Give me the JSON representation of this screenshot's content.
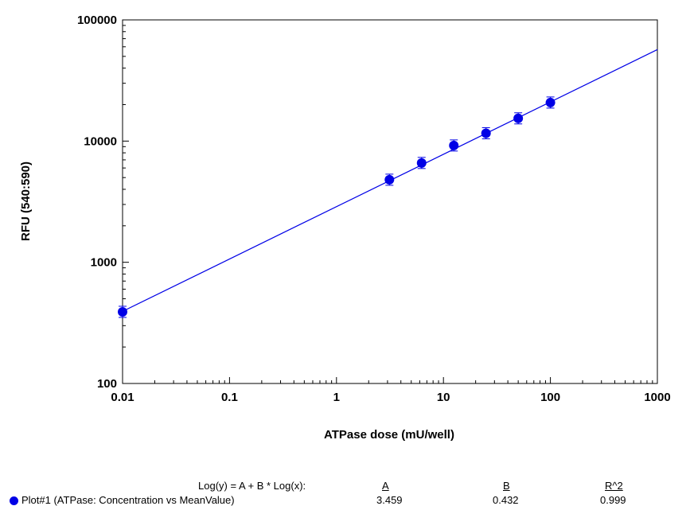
{
  "colors": {
    "series": "#0000e6",
    "axis": "#000000"
  },
  "chart_data": {
    "type": "scatter",
    "xscale": "log",
    "yscale": "log",
    "xlim": [
      0.01,
      1000
    ],
    "ylim": [
      100,
      100000
    ],
    "xlabel": "ATPase dose (mU/well)",
    "ylabel": "RFU (540:590)",
    "x_ticks": [
      "0.01",
      "0.1",
      "1",
      "10",
      "100",
      "1000"
    ],
    "y_ticks": [
      "100",
      "1000",
      "10000",
      "100000"
    ],
    "series": [
      {
        "name": "Plot#1 (ATPase: Concentration vs MeanValue)",
        "x": [
          0.01,
          3.125,
          6.25,
          12.5,
          25,
          50,
          100
        ],
        "y": [
          390,
          4800,
          6600,
          9200,
          11600,
          15400,
          20800
        ]
      }
    ],
    "fit": {
      "equation": "Log(y) = A + B * Log(x):",
      "A": "3.459",
      "B": "0.432",
      "R2": "0.999",
      "A_value": 3.459,
      "B_value": 0.432
    },
    "grid": false
  },
  "legend": {
    "equation": "Log(y) = A + B * Log(x):",
    "col_a": "A",
    "col_b": "B",
    "col_r2": "R^2",
    "series_label": "Plot#1 (ATPase: Concentration vs MeanValue)",
    "a": "3.459",
    "b": "0.432",
    "r2": "0.999"
  }
}
